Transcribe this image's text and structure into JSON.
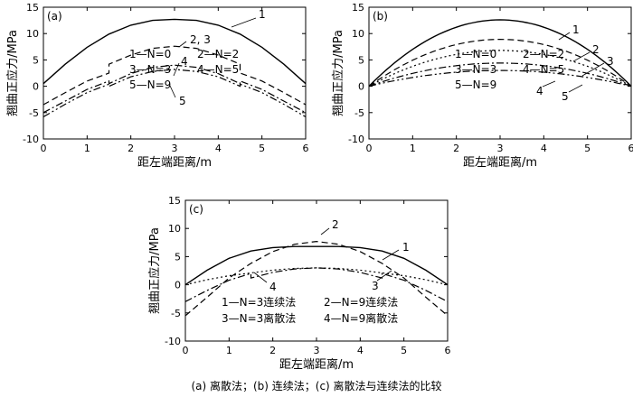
{
  "caption": "(a) 离散法；(b) 连续法；(c) 离散法与连续法的比较",
  "chart_data": [
    {
      "type": "line",
      "panel_label": "(a)",
      "xlabel": "距左端距离/m",
      "ylabel": "翘曲正应力/MPa",
      "xlim": [
        0,
        6
      ],
      "ylim": [
        -10,
        15
      ],
      "x_ticks": [
        "0",
        "1",
        "2",
        "3",
        "4",
        "5",
        "6"
      ],
      "y_ticks": [
        "-10",
        "-5",
        "0",
        "5",
        "10",
        "15"
      ],
      "legend": [
        "1—N=0",
        "2—N=2",
        "3—N=3",
        "4—N=5",
        "5—N=9"
      ],
      "series": [
        {
          "name": "1",
          "style": "solid",
          "x": [
            0,
            0.5,
            1,
            1.5,
            2,
            2.5,
            3,
            3.5,
            4,
            4.5,
            5,
            5.5,
            6
          ],
          "y": [
            0.5,
            4.2,
            7.4,
            9.9,
            11.6,
            12.5,
            12.7,
            12.5,
            11.6,
            9.9,
            7.4,
            4.2,
            0.5
          ]
        },
        {
          "name": "2, 3",
          "style": "dash",
          "x": [
            0,
            0.5,
            1,
            1.5,
            1.5,
            2,
            2.5,
            3,
            3.5,
            4,
            4.5,
            4.5,
            5,
            5.5,
            6
          ],
          "y": [
            -3.5,
            -1.2,
            1.0,
            2.5,
            4.2,
            5.9,
            7.2,
            7.6,
            7.2,
            5.9,
            4.2,
            2.5,
            1.0,
            -1.2,
            -3.5
          ]
        },
        {
          "name": "4",
          "style": "dashdot",
          "x": [
            0,
            0.5,
            1,
            1.5,
            1.5,
            2,
            2.5,
            3,
            3.5,
            4,
            4.5,
            4.5,
            5,
            5.5,
            6
          ],
          "y": [
            -5.0,
            -2.8,
            -0.6,
            1.0,
            0.5,
            2.4,
            3.6,
            4.0,
            3.6,
            2.4,
            0.5,
            1.0,
            -0.6,
            -2.8,
            -5.0
          ]
        },
        {
          "name": "5",
          "style": "dashdotdot",
          "x": [
            0,
            0.5,
            1,
            1.5,
            1.5,
            2,
            2.5,
            3,
            3.5,
            4,
            4.5,
            4.5,
            5,
            5.5,
            6
          ],
          "y": [
            -5.8,
            -3.4,
            -1.2,
            0.4,
            0.0,
            1.8,
            2.8,
            3.2,
            2.8,
            1.8,
            0.0,
            0.4,
            -1.2,
            -3.4,
            -5.8
          ]
        }
      ],
      "curve_labels": [
        "1",
        "2, 3",
        "4",
        "5"
      ]
    },
    {
      "type": "line",
      "panel_label": "(b)",
      "xlabel": "距左端距离/m",
      "ylabel": "翘曲正应力/MPa",
      "xlim": [
        0,
        6
      ],
      "ylim": [
        -10,
        15
      ],
      "x_ticks": [
        "0",
        "1",
        "2",
        "3",
        "4",
        "5",
        "6"
      ],
      "y_ticks": [
        "-10",
        "-5",
        "0",
        "5",
        "10",
        "15"
      ],
      "legend": [
        "1—N=0",
        "2—N=2",
        "3—N=3",
        "4—N=5",
        "5—N=9"
      ],
      "series": [
        {
          "name": "1",
          "style": "solid",
          "peak": 12.6
        },
        {
          "name": "2",
          "style": "dash",
          "peak": 8.9
        },
        {
          "name": "3",
          "style": "dot",
          "peak": 6.8
        },
        {
          "name": "4",
          "style": "dashdot",
          "peak": 4.4
        },
        {
          "name": "5",
          "style": "dashdotdot",
          "peak": 3.0
        }
      ],
      "curve_labels": [
        "1",
        "2",
        "3",
        "4",
        "5"
      ]
    },
    {
      "type": "line",
      "panel_label": "(c)",
      "xlabel": "距左端距离/m",
      "ylabel": "翘曲正应力/MPa",
      "xlim": [
        0,
        6
      ],
      "ylim": [
        -10,
        15
      ],
      "x_ticks": [
        "0",
        "1",
        "2",
        "3",
        "4",
        "5",
        "6"
      ],
      "y_ticks": [
        "-10",
        "-5",
        "0",
        "5",
        "10",
        "15"
      ],
      "legend": [
        "1—N=3连续法",
        "2—N=9连续法",
        "3—N=3离散法",
        "4—N=9离散法"
      ],
      "series": [
        {
          "name": "1",
          "style": "solid",
          "x": [
            0,
            0.5,
            1,
            1.5,
            2,
            2.5,
            3,
            3.5,
            4,
            4.5,
            5,
            5.5,
            6
          ],
          "y": [
            0.0,
            2.6,
            4.7,
            6.0,
            6.6,
            6.8,
            6.8,
            6.8,
            6.6,
            6.0,
            4.7,
            2.6,
            0.0
          ]
        },
        {
          "name": "2",
          "style": "dash",
          "x": [
            0,
            0.5,
            1,
            1.5,
            2,
            2.5,
            3,
            3.5,
            4,
            4.5,
            5,
            5.5,
            6
          ],
          "y": [
            -5.5,
            -2.2,
            1.2,
            3.8,
            5.9,
            7.2,
            7.7,
            7.2,
            5.9,
            3.8,
            1.2,
            -2.2,
            -5.5
          ]
        },
        {
          "name": "3",
          "style": "dot",
          "x": [
            0,
            0.5,
            1,
            1.5,
            2,
            2.5,
            3,
            3.5,
            4,
            4.5,
            5,
            5.5,
            6
          ],
          "y": [
            0.0,
            0.9,
            1.6,
            2.1,
            2.6,
            2.9,
            3.0,
            2.9,
            2.6,
            2.1,
            1.6,
            0.9,
            0.0
          ]
        },
        {
          "name": "4",
          "style": "dashdot",
          "x": [
            0,
            0.5,
            1,
            1.5,
            1.5,
            2,
            2.5,
            3,
            3.5,
            4,
            4.5,
            4.5,
            5,
            5.5,
            6
          ],
          "y": [
            -3.0,
            -1.0,
            0.8,
            2.0,
            1.2,
            2.2,
            2.8,
            3.0,
            2.8,
            2.2,
            1.2,
            2.0,
            0.8,
            -1.0,
            -3.0
          ]
        }
      ],
      "curve_labels": [
        "1",
        "2",
        "3",
        "4"
      ]
    }
  ]
}
